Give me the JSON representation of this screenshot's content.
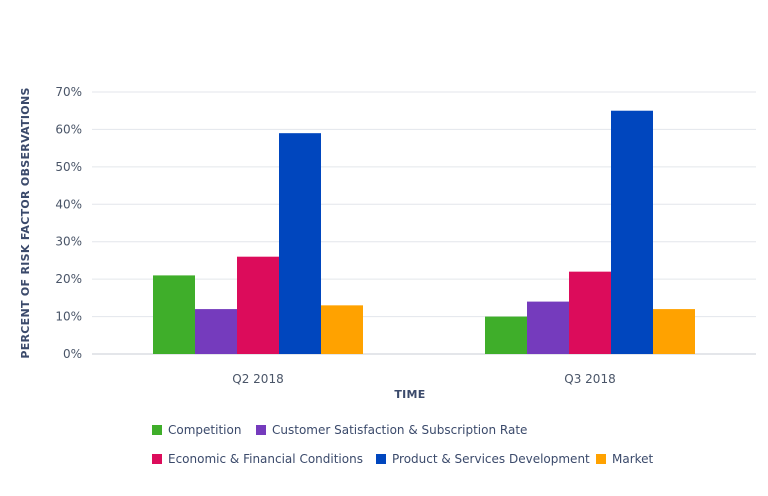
{
  "chart_data": {
    "type": "bar",
    "categories": [
      "Q2 2018",
      "Q3 2018"
    ],
    "series": [
      {
        "name": "Competition",
        "color": "#3fae2a",
        "values": [
          21,
          10
        ]
      },
      {
        "name": "Customer Satisfaction & Subscription Rate",
        "color": "#753bbd",
        "values": [
          12,
          14
        ]
      },
      {
        "name": "Economic & Financial Conditions",
        "color": "#dc0c5b",
        "values": [
          26,
          22
        ]
      },
      {
        "name": "Product & Services Development",
        "color": "#0046be",
        "values": [
          59,
          65
        ]
      },
      {
        "name": "Market",
        "color": "#ffa200",
        "values": [
          13,
          12
        ]
      }
    ],
    "xlabel": "TIME",
    "ylabel": "PERCENT OF RISK FACTOR OBSERVATIONS",
    "ylim": [
      0,
      70
    ],
    "yticks": [
      "0%",
      "10%",
      "20%",
      "30%",
      "40%",
      "50%",
      "60%",
      "70%"
    ],
    "grid": true,
    "legend_position": "bottom"
  }
}
